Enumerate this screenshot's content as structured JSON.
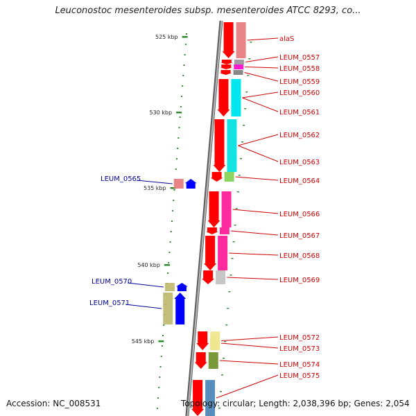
{
  "title": "Leuconostoc mesenteroides subsp. mesenteroides ATCC 8293, co...",
  "footer": {
    "accession": "Accession: NC_008531",
    "summary": "Topology: circular; Length: 2,038,396 bp; Genes: 2,054"
  },
  "colors": {
    "backbone": "#8c8c8c",
    "tick": "#2e8b2e",
    "forward_label": "#cc0000",
    "reverse_label": "#000099",
    "forward_gene": "#ff0000",
    "reverse_gene": "#0000ff"
  },
  "scale_ticks": [
    {
      "label": "525 kbp"
    },
    {
      "label": "530 kbp"
    },
    {
      "label": "535 kbp"
    },
    {
      "label": "540 kbp"
    },
    {
      "label": "545 kbp"
    }
  ],
  "forward_genes": [
    {
      "label": "alaS",
      "color": "#e8787a"
    },
    {
      "label": "LEUM_0557",
      "color": "#9a8f9a"
    },
    {
      "label": "LEUM_0558",
      "color": "#ff00cc"
    },
    {
      "label": "LEUM_0559",
      "color": "#7a7a7a"
    },
    {
      "label": "LEUM_0560",
      "color": "#00e5ee"
    },
    {
      "label": "LEUM_0561",
      "color": "#00e5ee"
    },
    {
      "label": "LEUM_0562",
      "color": "#bdb76b"
    },
    {
      "label": "LEUM_0563",
      "color": "#00e5ee"
    },
    {
      "label": "LEUM_0564",
      "color": "#7fd050"
    },
    {
      "label": "LEUM_0566",
      "color": "#ff1493"
    },
    {
      "label": "LEUM_0567",
      "color": "#ff1493"
    },
    {
      "label": "LEUM_0568",
      "color": "#ff1493"
    },
    {
      "label": "LEUM_0569",
      "color": "#c0c0c0"
    },
    {
      "label": "LEUM_0572",
      "color": "#f0e68c"
    },
    {
      "label": "LEUM_0573",
      "color": "#f0e68c"
    },
    {
      "label": "LEUM_0574",
      "color": "#6b8e23"
    },
    {
      "label": "LEUM_0575",
      "color": "#4682b4"
    }
  ],
  "reverse_genes": [
    {
      "label": "LEUM_0565",
      "color": "#e8787a"
    },
    {
      "label": "LEUM_0570",
      "color": "#bdb76b"
    },
    {
      "label": "LEUM_0571",
      "color": "#bdb76b"
    }
  ]
}
